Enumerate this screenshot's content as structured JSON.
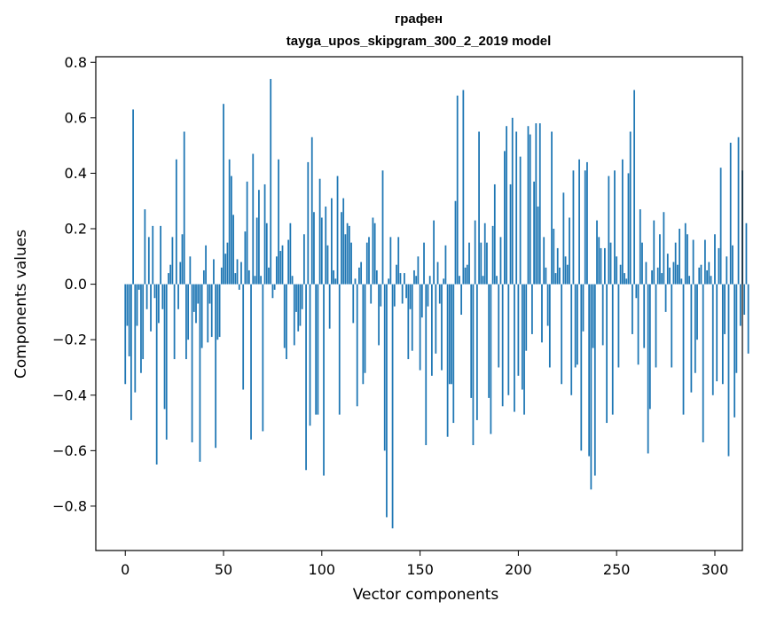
{
  "chart_data": {
    "type": "bar",
    "title_line1": "графен",
    "title_line2": "tayga_upos_skipgram_300_2_2019 model",
    "xlabel": "Vector components",
    "ylabel": "Components values",
    "xlim": [
      -15,
      314
    ],
    "ylim": [
      -0.96,
      0.82
    ],
    "x_ticks": [
      0,
      50,
      100,
      150,
      200,
      250,
      300
    ],
    "x_tick_labels": [
      "0",
      "50",
      "100",
      "150",
      "200",
      "250",
      "300"
    ],
    "y_ticks": [
      -0.8,
      -0.6,
      -0.4,
      -0.2,
      0.0,
      0.2,
      0.4,
      0.6,
      0.8
    ],
    "y_tick_labels": [
      "−0.8",
      "−0.6",
      "−0.4",
      "−0.2",
      "0.0",
      "0.2",
      "0.4",
      "0.6",
      "0.8"
    ],
    "bar_color": "#1f77b4",
    "values": [
      -0.36,
      -0.15,
      -0.26,
      -0.49,
      0.63,
      -0.39,
      -0.15,
      -0.02,
      -0.32,
      -0.27,
      0.27,
      -0.09,
      0.17,
      -0.17,
      0.21,
      -0.05,
      -0.65,
      -0.14,
      0.21,
      -0.09,
      -0.45,
      -0.56,
      0.04,
      0.07,
      0.17,
      -0.27,
      0.45,
      -0.09,
      0.08,
      0.18,
      0.55,
      -0.27,
      -0.2,
      0.1,
      -0.57,
      -0.1,
      -0.14,
      -0.07,
      -0.64,
      -0.23,
      0.05,
      0.14,
      -0.21,
      -0.07,
      -0.19,
      0.09,
      -0.59,
      -0.2,
      -0.19,
      0.06,
      0.65,
      0.11,
      0.15,
      0.45,
      0.39,
      0.25,
      0.04,
      0.09,
      -0.02,
      0.08,
      -0.38,
      0.19,
      0.37,
      0.05,
      -0.56,
      0.47,
      0.03,
      0.24,
      0.34,
      0.03,
      -0.53,
      0.36,
      0.22,
      0.06,
      0.74,
      -0.05,
      -0.02,
      0.1,
      0.45,
      0.12,
      0.14,
      -0.23,
      -0.27,
      0.16,
      0.22,
      0.03,
      -0.22,
      -0.1,
      -0.17,
      -0.15,
      -0.09,
      0.18,
      -0.67,
      0.44,
      -0.51,
      0.53,
      0.26,
      -0.47,
      -0.47,
      0.38,
      0.24,
      -0.69,
      0.28,
      0.14,
      -0.16,
      0.31,
      0.05,
      0.02,
      0.39,
      -0.47,
      0.26,
      0.31,
      0.18,
      0.22,
      0.21,
      0.15,
      -0.14,
      0.02,
      -0.44,
      0.06,
      0.08,
      -0.36,
      -0.32,
      0.15,
      0.17,
      -0.07,
      0.24,
      0.22,
      0.05,
      -0.22,
      -0.08,
      0.41,
      -0.6,
      -0.84,
      0.02,
      0.17,
      -0.88,
      -0.08,
      0.07,
      0.17,
      0.04,
      -0.07,
      0.04,
      -0.05,
      -0.27,
      -0.09,
      -0.24,
      0.05,
      0.03,
      0.1,
      -0.31,
      -0.12,
      0.15,
      -0.58,
      -0.08,
      0.03,
      -0.33,
      0.23,
      -0.25,
      0.08,
      -0.07,
      -0.31,
      0.02,
      0.14,
      -0.55,
      -0.36,
      -0.36,
      -0.5,
      0.3,
      0.68,
      0.03,
      -0.11,
      0.7,
      0.06,
      0.07,
      0.15,
      -0.41,
      -0.58,
      0.23,
      -0.49,
      0.55,
      0.15,
      0.03,
      0.22,
      0.15,
      -0.41,
      -0.54,
      0.21,
      0.36,
      0.03,
      -0.3,
      0.17,
      -0.44,
      0.48,
      0.57,
      -0.4,
      0.36,
      0.6,
      -0.46,
      0.55,
      -0.33,
      0.46,
      -0.38,
      -0.47,
      -0.24,
      0.57,
      0.54,
      -0.18,
      0.37,
      0.58,
      0.28,
      0.58,
      -0.21,
      0.17,
      0.06,
      -0.15,
      -0.3,
      0.55,
      0.2,
      0.04,
      0.13,
      0.06,
      -0.36,
      0.33,
      0.1,
      0.07,
      0.24,
      -0.4,
      0.41,
      -0.3,
      -0.29,
      0.45,
      -0.6,
      -0.17,
      0.41,
      0.44,
      -0.62,
      -0.74,
      -0.23,
      -0.69,
      0.23,
      0.17,
      0.13,
      -0.22,
      0.13,
      -0.5,
      0.39,
      0.15,
      -0.47,
      0.41,
      0.1,
      -0.3,
      0.07,
      0.45,
      0.04,
      0.02,
      0.4,
      0.55,
      -0.18,
      0.7,
      -0.05,
      -0.29,
      0.27,
      0.15,
      -0.23,
      0.08,
      -0.61,
      -0.45,
      0.05,
      0.23,
      -0.3,
      0.06,
      0.18,
      0.04,
      0.26,
      -0.1,
      0.11,
      0.06,
      -0.3,
      0.08,
      0.15,
      0.07,
      0.2,
      0.02,
      -0.47,
      0.22,
      0.18,
      0.03,
      -0.39,
      0.16,
      -0.32,
      -0.2,
      0.06,
      0.07,
      -0.57,
      0.16,
      0.05,
      0.08,
      0.03,
      -0.4,
      0.18,
      -0.35,
      0.13,
      0.42,
      -0.36,
      -0.18,
      0.1,
      -0.62,
      0.51,
      0.14,
      -0.48,
      -0.32,
      0.53,
      -0.15,
      0.41,
      -0.11,
      0.22,
      -0.25
    ]
  }
}
